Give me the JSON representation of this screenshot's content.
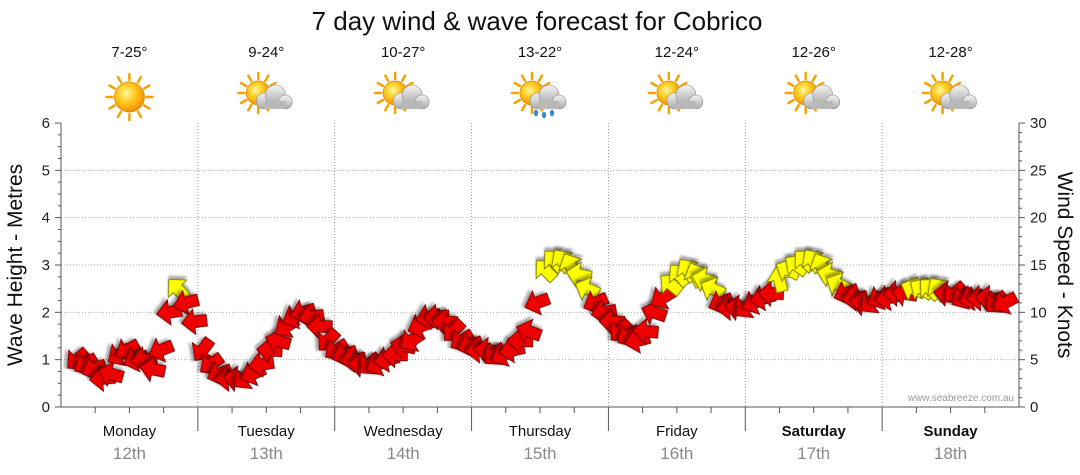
{
  "chart_data": {
    "type": "line",
    "title": "7 day wind & wave forecast for Cobrico",
    "ylabel": "Wave Height - Metres",
    "y2label": "Wind Speed - Knots",
    "ylim": [
      0,
      6
    ],
    "y2lim": [
      0,
      30
    ],
    "yticks": [
      "0",
      "1",
      "2",
      "3",
      "4",
      "5",
      "6"
    ],
    "y2ticks": [
      "0",
      "5",
      "10",
      "15",
      "20",
      "25",
      "30"
    ],
    "grid": true,
    "watermark": "www.seabreeze.com.au",
    "days": [
      {
        "name": "Monday",
        "date": "12th",
        "bold": false,
        "temp": "7-25°",
        "weather": "sunny"
      },
      {
        "name": "Tuesday",
        "date": "13th",
        "bold": false,
        "temp": "9-24°",
        "weather": "partly-cloudy"
      },
      {
        "name": "Wednesday",
        "date": "14th",
        "bold": false,
        "temp": "10-27°",
        "weather": "partly-cloudy"
      },
      {
        "name": "Thursday",
        "date": "15th",
        "bold": false,
        "temp": "13-22°",
        "weather": "rain"
      },
      {
        "name": "Friday",
        "date": "16th",
        "bold": false,
        "temp": "12-24°",
        "weather": "partly-cloudy"
      },
      {
        "name": "Saturday",
        "date": "17th",
        "bold": true,
        "temp": "12-26°",
        "weather": "partly-cloudy"
      },
      {
        "name": "Sunday",
        "date": "18th",
        "bold": true,
        "temp": "12-28°",
        "weather": "partly-cloudy"
      }
    ],
    "wind_knots": [
      5,
      4.5,
      4,
      3,
      3.5,
      5.5,
      6,
      5,
      5,
      4,
      6,
      10,
      12.5,
      11,
      9,
      6,
      4.5,
      3.5,
      3,
      3,
      3,
      3.5,
      4.5,
      6,
      7,
      8.5,
      9.5,
      10,
      9.5,
      8.5,
      7,
      6,
      5.5,
      5,
      4.5,
      4.5,
      4.5,
      5,
      5.5,
      6.5,
      7,
      8.5,
      9.5,
      9.5,
      9,
      8,
      7,
      6.5,
      6,
      6,
      5.5,
      5.5,
      6,
      7,
      8,
      11,
      14.5,
      15.5,
      15.5,
      15,
      14,
      12.5,
      11,
      10,
      9,
      8,
      7.5,
      7,
      8,
      10,
      11.5,
      13,
      14,
      14.5,
      14,
      13.5,
      12.5,
      11,
      10.5,
      10.5,
      10.5,
      11,
      11.5,
      12,
      13.5,
      14.5,
      15,
      15.5,
      15.5,
      15,
      14,
      13,
      12,
      11.5,
      11,
      11,
      11.5,
      11.5,
      12,
      12,
      12.5,
      12.5,
      12.5,
      12.5,
      12,
      12,
      11.5,
      11.5,
      11.5,
      11.5,
      11,
      11
    ]
  }
}
